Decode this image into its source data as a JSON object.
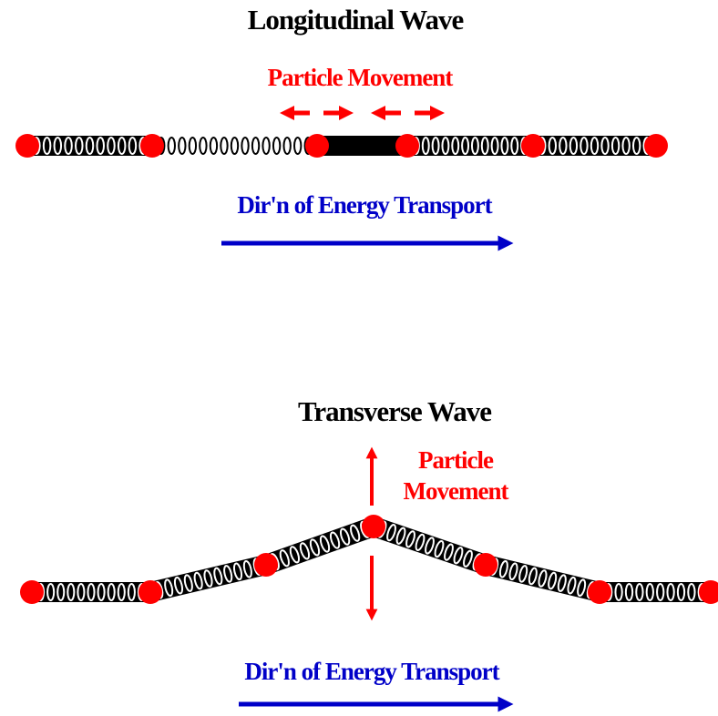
{
  "longitudinal": {
    "title": "Longitudinal Wave",
    "particle_movement": "Particle Movement",
    "energy_direction": "Dir'n of Energy Transport"
  },
  "transverse": {
    "title": "Transverse Wave",
    "particle_movement": [
      "Particle",
      "Movement"
    ],
    "energy_direction": "Dir'n of Energy Transport"
  }
}
